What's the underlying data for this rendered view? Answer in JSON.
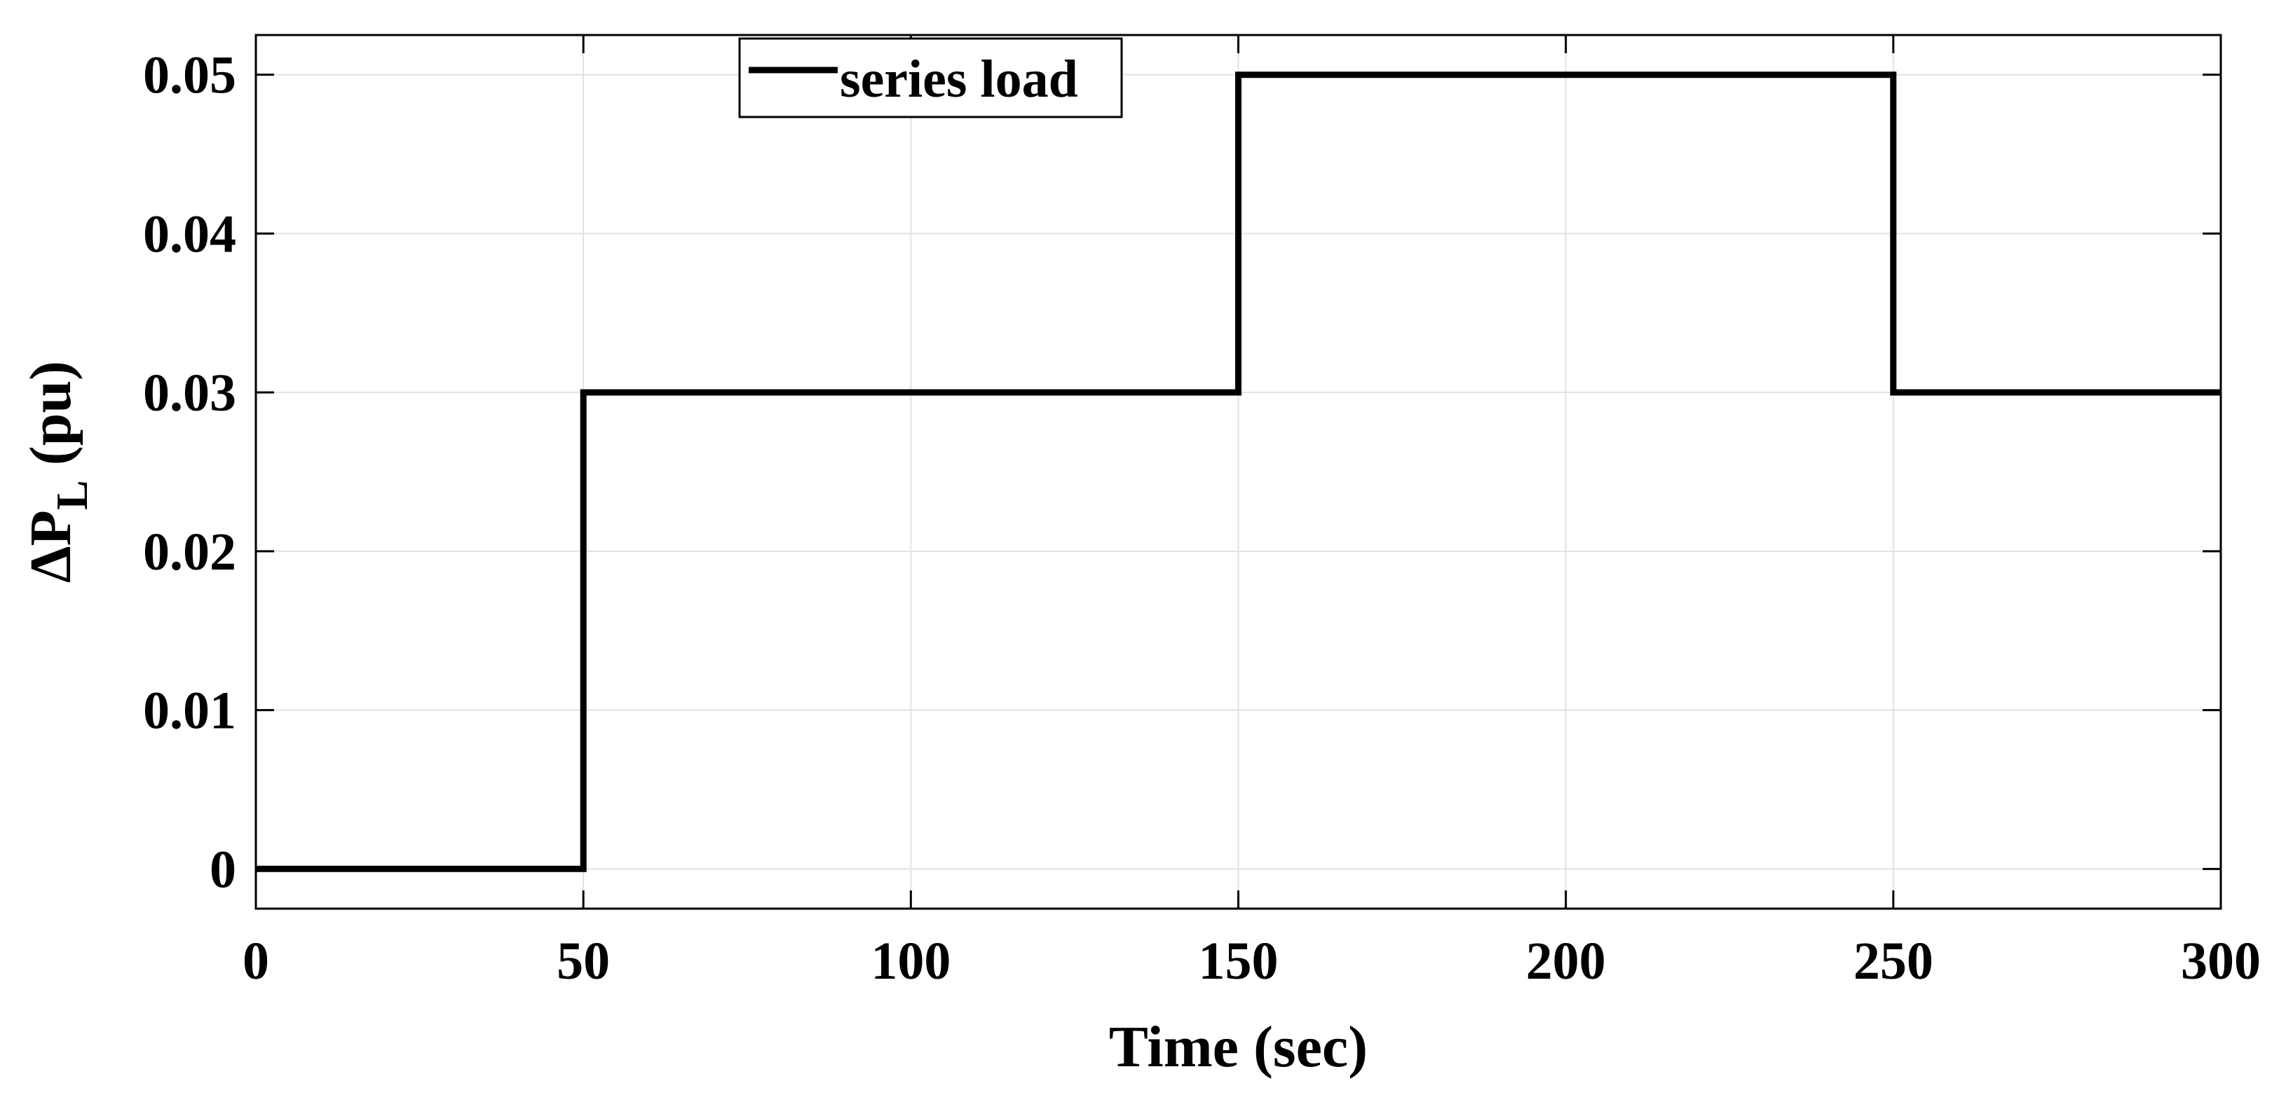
{
  "chart_data": {
    "type": "line",
    "step": true,
    "xlabel": "Time (sec)",
    "ylabel": {
      "prefix": "ΔP",
      "subscript": "L",
      "suffix": " (pu)"
    },
    "xlim": [
      0,
      300
    ],
    "ylim": [
      -0.0025,
      0.0525
    ],
    "xticks": [
      0,
      50,
      100,
      150,
      200,
      250,
      300
    ],
    "xtick_labels": [
      "0",
      "50",
      "100",
      "150",
      "200",
      "250",
      "300"
    ],
    "yticks": [
      0,
      0.01,
      0.02,
      0.03,
      0.04,
      0.05
    ],
    "ytick_labels": [
      "0",
      "0.01",
      "0.02",
      "0.03",
      "0.04",
      "0.05"
    ],
    "grid": true,
    "legend_position": "top-left",
    "series": [
      {
        "name": "series load",
        "color": "#000000",
        "x": [
          0,
          50,
          50,
          150,
          150,
          250,
          250,
          300
        ],
        "y": [
          0,
          0,
          0.03,
          0.03,
          0.05,
          0.05,
          0.03,
          0.03
        ]
      }
    ]
  }
}
